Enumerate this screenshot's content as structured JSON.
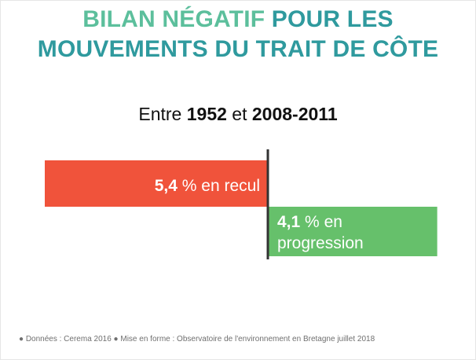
{
  "title": {
    "part1": "BILAN NÉGATIF",
    "part2": " POUR LES",
    "line2": "MOUVEMENTS DU TRAIT DE CÔTE"
  },
  "subtitle": {
    "prefix": "Entre ",
    "start": "1952",
    "middle": " et ",
    "end": "2008-2011"
  },
  "chart_data": {
    "type": "bar",
    "orientation": "horizontal-diverging",
    "title": "Entre 1952 et 2008-2011",
    "xlim": [
      -5.4,
      4.1
    ],
    "series": [
      {
        "name": "recul",
        "value": -5.4,
        "number": "5,4",
        "unit": " %",
        "label": "en recul",
        "color": "#f0533b"
      },
      {
        "name": "progression",
        "value": 4.1,
        "number": "4,1",
        "unit": " %",
        "label_line1": "en",
        "label_line2": "progression",
        "color": "#66c06b"
      }
    ]
  },
  "footer": {
    "text": "● Données : Cerema 2016 ● Mise en forme : Observatoire de l'environnement en Bretagne juillet 2018"
  },
  "colors": {
    "title_light": "#5cbf9c",
    "title_dark": "#2f9a9e",
    "axis": "#333333"
  }
}
